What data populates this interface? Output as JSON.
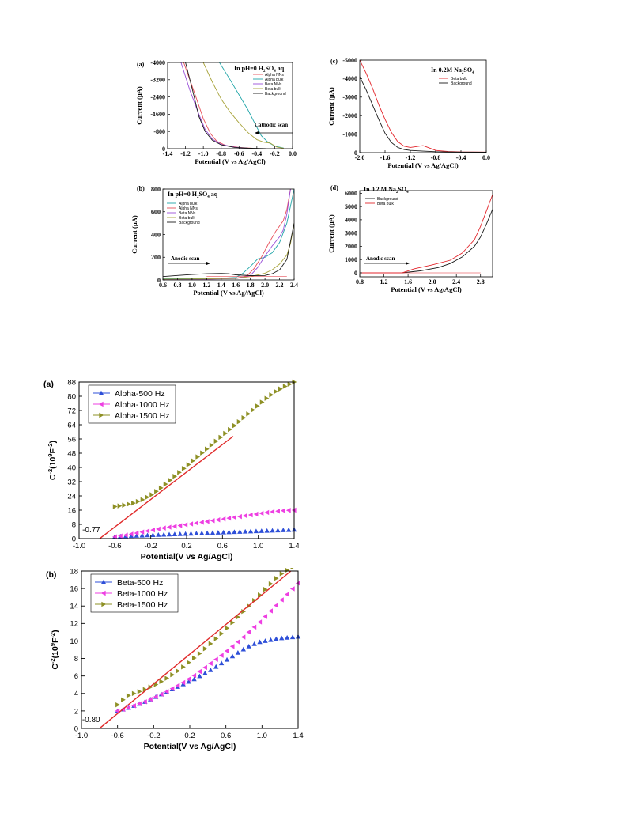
{
  "colors": {
    "alpha_nns": "#e8505a",
    "alpha_bulk": "#1fa5a8",
    "beta_nns": "#9a4fd8",
    "beta_bulk": "#a8a33a",
    "background": "#1a1a1a",
    "red": "#e3262c",
    "tri_blue": "#2e4fd8",
    "tri_magenta": "#ee3fe2",
    "tri_olive": "#8e9025",
    "fit": "#e02a2a"
  },
  "chart_data": [
    {
      "id": "a",
      "panel_label": "(a)",
      "type": "line",
      "title_main": "In pH=0 H",
      "title_sub": "2",
      "title_main2": "SO",
      "title_sub2": "4",
      "title_end": " aq",
      "xlabel": "Potential (V vs Ag/AgCl)",
      "ylabel": "Current (µA)",
      "xlim": [
        -1.4,
        0.0
      ],
      "ylim": [
        -4000,
        0
      ],
      "y_reversed": true,
      "xticks": [
        -1.4,
        -1.2,
        -1.0,
        -0.8,
        -0.6,
        -0.4,
        -0.2,
        0.0
      ],
      "xtick_labels": [
        "-1.4",
        "-1.2",
        "-1.0",
        "-0.8",
        "-0.6",
        "-0.4",
        "-0.2",
        "0.0"
      ],
      "yticks": [
        -4000,
        -3200,
        -2400,
        -1600,
        -800,
        0
      ],
      "ytick_labels": [
        "-4000",
        "-3200",
        "-2400",
        "-1600",
        "-800",
        "0"
      ],
      "annotation": "Cathodic scan",
      "legend": [
        "Alpha NNs",
        "Alpha bulk",
        "Beta NNs",
        "Beta bulk",
        "Background"
      ],
      "series": [
        {
          "name": "Alpha NNs",
          "color_key": "alpha_nns",
          "x": [
            -1.22,
            -1.1,
            -1.0,
            -0.92,
            -0.85,
            -0.75,
            -0.6,
            -0.45
          ],
          "y": [
            -4000,
            -2600,
            -1400,
            -700,
            -350,
            -150,
            -60,
            -20
          ]
        },
        {
          "name": "Alpha bulk",
          "color_key": "alpha_bulk",
          "x": [
            -0.82,
            -0.7,
            -0.6,
            -0.5,
            -0.42,
            -0.35,
            -0.28,
            -0.2,
            -0.1
          ],
          "y": [
            -4000,
            -3200,
            -2500,
            -1800,
            -1150,
            -600,
            -320,
            -120,
            -30
          ]
        },
        {
          "name": "Beta NNs",
          "color_key": "beta_nns",
          "x": [
            -1.25,
            -1.15,
            -1.05,
            -0.98,
            -0.9,
            -0.8,
            -0.65,
            -0.5
          ],
          "y": [
            -4000,
            -2700,
            -1600,
            -900,
            -450,
            -200,
            -70,
            -20
          ]
        },
        {
          "name": "Beta bulk",
          "color_key": "beta_bulk",
          "x": [
            -1.0,
            -0.9,
            -0.8,
            -0.7,
            -0.6,
            -0.5,
            -0.4,
            -0.32,
            -0.25,
            -0.18,
            -0.1
          ],
          "y": [
            -4000,
            -3100,
            -2300,
            -1700,
            -1200,
            -750,
            -420,
            -300,
            -260,
            -80,
            -20
          ]
        },
        {
          "name": "Background",
          "color_key": "background",
          "x": [
            -1.2,
            -1.12,
            -1.05,
            -0.98,
            -0.9,
            -0.8,
            -0.65,
            -0.5,
            -0.3
          ],
          "y": [
            -4000,
            -2700,
            -1500,
            -800,
            -400,
            -180,
            -60,
            -25,
            -5
          ]
        }
      ]
    },
    {
      "id": "b",
      "panel_label": "(b)",
      "type": "line",
      "title_main": "In  pH=0 H",
      "title_sub": "2",
      "title_main2": "SO",
      "title_sub2": "4",
      "title_end": " aq",
      "xlabel": "Potential (V vs Ag/AgCl)",
      "ylabel": "Current (µA)",
      "xlim": [
        0.6,
        2.4
      ],
      "ylim": [
        0,
        800
      ],
      "xticks": [
        0.6,
        0.8,
        1.0,
        1.2,
        1.4,
        1.6,
        1.8,
        2.0,
        2.2,
        2.4
      ],
      "xtick_labels": [
        "0.6",
        "0.8",
        "1.0",
        "1.2",
        "1.4",
        "1.6",
        "1.8",
        "2.0",
        "2.2",
        "2.4"
      ],
      "yticks": [
        0,
        200,
        400,
        600,
        800
      ],
      "ytick_labels": [
        "0",
        "200",
        "400",
        "600",
        "800"
      ],
      "annotation": "Anodic scan",
      "legend": [
        "Alpha bulk",
        "Alpha NNs",
        "Beta NNs",
        "Beta bulk",
        "Background"
      ],
      "series": [
        {
          "name": "Alpha bulk",
          "color_key": "alpha_bulk",
          "x": [
            0.6,
            1.0,
            1.4,
            1.6,
            1.7,
            1.8,
            1.9,
            2.0,
            2.1,
            2.2,
            2.3,
            2.35,
            2.4
          ],
          "y": [
            10,
            12,
            15,
            22,
            60,
            120,
            185,
            200,
            240,
            330,
            500,
            650,
            800
          ]
        },
        {
          "name": "Alpha NNs",
          "color_key": "alpha_nns",
          "x": [
            0.6,
            1.2,
            1.6,
            1.75,
            1.85,
            1.95,
            2.05,
            2.15,
            2.25,
            2.3,
            2.35
          ],
          "y": [
            5,
            8,
            15,
            35,
            100,
            200,
            320,
            430,
            520,
            620,
            800
          ]
        },
        {
          "name": "Beta NNs",
          "color_key": "beta_nns",
          "x": [
            0.6,
            1.2,
            1.6,
            1.8,
            1.9,
            2.0,
            2.1,
            2.2,
            2.25,
            2.3,
            2.35
          ],
          "y": [
            5,
            8,
            12,
            40,
            110,
            210,
            300,
            380,
            440,
            580,
            800
          ]
        },
        {
          "name": "Beta bulk",
          "color_key": "beta_bulk",
          "x": [
            0.6,
            1.2,
            1.6,
            1.8,
            2.0,
            2.1,
            2.2,
            2.3,
            2.35,
            2.4
          ],
          "y": [
            8,
            10,
            14,
            30,
            60,
            90,
            140,
            220,
            320,
            500
          ]
        },
        {
          "name": "Background",
          "color_key": "background",
          "x": [
            0.6,
            0.8,
            1.0,
            1.2,
            1.4,
            1.5,
            1.6,
            1.8,
            2.0,
            2.1,
            2.2,
            2.3,
            2.4
          ],
          "y": [
            30,
            40,
            48,
            55,
            58,
            55,
            45,
            38,
            40,
            55,
            90,
            180,
            500
          ]
        },
        {
          "name": "Tangent",
          "color_key": "alpha_nns",
          "x": [
            1.2,
            2.3
          ],
          "y": [
            30,
            30
          ]
        }
      ]
    },
    {
      "id": "c",
      "panel_label": "(c)",
      "type": "line",
      "title_main": "In 0.2M Na",
      "title_sub": "2",
      "title_main2": "SO",
      "title_sub2": "4",
      "title_end": "",
      "xlabel": "Potential (V vs Ag/AgCl)",
      "ylabel": "Current (µA)",
      "xlim": [
        -2.0,
        0.0
      ],
      "ylim": [
        -5000,
        0
      ],
      "y_reversed": true,
      "xticks": [
        -2.0,
        -1.6,
        -1.2,
        -0.8,
        -0.4,
        0.0
      ],
      "xtick_labels": [
        "-2.0",
        "-1.6",
        "-1.2",
        "-0.8",
        "-0.4",
        "0.0"
      ],
      "yticks": [
        -5000,
        -4000,
        -3000,
        -2000,
        -1000,
        0
      ],
      "ytick_labels": [
        "-5000",
        "-4000",
        "-3000",
        "-2000",
        "-1000",
        "0"
      ],
      "annotation": "",
      "legend": [
        "Beta bulk",
        "Background"
      ],
      "series": [
        {
          "name": "Beta bulk",
          "color_key": "red",
          "x": [
            -2.0,
            -1.9,
            -1.8,
            -1.7,
            -1.6,
            -1.5,
            -1.4,
            -1.3,
            -1.2,
            -1.1,
            -1.0,
            -0.9,
            -0.8,
            -0.6,
            -0.4,
            0.0
          ],
          "y": [
            -5000,
            -4300,
            -3500,
            -2600,
            -1800,
            -1100,
            -600,
            -350,
            -280,
            -330,
            -380,
            -250,
            -120,
            -60,
            -40,
            -30
          ]
        },
        {
          "name": "Background",
          "color_key": "background",
          "x": [
            -2.0,
            -1.9,
            -1.8,
            -1.7,
            -1.6,
            -1.5,
            -1.4,
            -1.3,
            -1.2,
            -1.0,
            -0.8,
            -0.4,
            0.0
          ],
          "y": [
            -4100,
            -3400,
            -2600,
            -1800,
            -1050,
            -550,
            -280,
            -170,
            -120,
            -80,
            -50,
            -30,
            -20
          ]
        }
      ]
    },
    {
      "id": "d",
      "panel_label": "(d)",
      "type": "line",
      "title_main": "In 0.2 M Na",
      "title_sub": "2",
      "title_main2": "SO",
      "title_sub2": "4",
      "title_end": "",
      "xlabel": "Potential (V vs Ag/AgCl)",
      "ylabel": "Current (µA)",
      "xlim": [
        0.8,
        3.0
      ],
      "ylim": [
        -300,
        6200
      ],
      "xticks": [
        0.8,
        1.2,
        1.6,
        2.0,
        2.4,
        2.8
      ],
      "xtick_labels": [
        "0.8",
        "1.2",
        "1.6",
        "2.0",
        "2.4",
        "2.8"
      ],
      "yticks": [
        0,
        1000,
        2000,
        3000,
        4000,
        5000,
        6000
      ],
      "ytick_labels": [
        "0",
        "1000",
        "2000",
        "3000",
        "4000",
        "5000",
        "6000"
      ],
      "annotation": "Anodic scan",
      "legend": [
        "Background",
        "Beta bulk"
      ],
      "series": [
        {
          "name": "Background",
          "color_key": "background",
          "x": [
            0.8,
            1.2,
            1.5,
            1.8,
            2.1,
            2.3,
            2.5,
            2.7,
            2.8,
            2.9,
            3.0
          ],
          "y": [
            0,
            0,
            0,
            150,
            400,
            700,
            1200,
            2000,
            2700,
            3700,
            4800
          ]
        },
        {
          "name": "Beta bulk",
          "color_key": "red",
          "x": [
            0.8,
            1.2,
            1.5,
            1.7,
            2.0,
            2.3,
            2.5,
            2.7,
            2.8,
            2.9,
            3.0
          ],
          "y": [
            0,
            0,
            0,
            300,
            600,
            950,
            1500,
            2500,
            3500,
            4700,
            5900
          ]
        },
        {
          "name": "Tangent",
          "color_key": "red",
          "x": [
            1.5,
            2.8
          ],
          "y": [
            0,
            0
          ]
        }
      ]
    },
    {
      "id": "alpha_mott",
      "panel_label": "(a)",
      "type": "scatter",
      "xlabel": "Potential(V vs Ag/AgCl)",
      "ylabel_main": "C",
      "ylabel_sup": "-2",
      "ylabel_mid": "(10",
      "ylabel_sup2": "9",
      "ylabel_mid2": "F",
      "ylabel_sup3": "-2",
      "ylabel_end": ")",
      "xlim": [
        -1.0,
        1.4
      ],
      "ylim": [
        0,
        88
      ],
      "xticks": [
        -1.0,
        -0.6,
        -0.2,
        0.2,
        0.6,
        1.0,
        1.4
      ],
      "xtick_labels": [
        "-1.0",
        "-0.6",
        "-0.2",
        "0.2",
        "0.6",
        "1.0",
        "1.4"
      ],
      "yticks": [
        0,
        8,
        16,
        24,
        32,
        40,
        48,
        56,
        64,
        72,
        80,
        88
      ],
      "ytick_labels": [
        "0",
        "8",
        "16",
        "24",
        "32",
        "40",
        "48",
        "56",
        "64",
        "72",
        "80",
        "88"
      ],
      "annotation": "-0.77",
      "fit_line": {
        "x": [
          -0.77,
          0.72
        ],
        "y": [
          0,
          57.5
        ]
      },
      "series": [
        {
          "name": "Alpha-500 Hz",
          "marker": "up",
          "color_key": "tri_blue",
          "x_start": -0.6,
          "x_end": 1.4,
          "n": 34,
          "y": [
            1.2,
            1.4,
            1.6,
            1.8,
            2.0,
            2.2,
            2.4,
            2.6,
            2.8,
            3.0,
            3.2,
            3.4,
            3.6,
            3.8,
            4.0,
            4.2,
            4.4,
            4.6,
            4.8,
            5.0
          ]
        },
        {
          "name": "Alpha-1000 Hz",
          "marker": "left",
          "color_key": "tri_magenta",
          "x_start": -0.6,
          "x_end": 1.4,
          "n": 34,
          "y": [
            1.0,
            1.8,
            2.8,
            3.8,
            4.8,
            5.8,
            6.6,
            7.4,
            8.2,
            9.0,
            9.8,
            10.6,
            11.4,
            12.2,
            13.0,
            13.8,
            14.6,
            15.3,
            15.8,
            16.0
          ]
        },
        {
          "name": "Alpha-1500 Hz",
          "marker": "right",
          "color_key": "tri_olive",
          "x_start": -0.6,
          "x_end": 1.4,
          "n": 40,
          "y": [
            18.0,
            18.8,
            20.0,
            22.0,
            25.0,
            29.0,
            33.5,
            38.0,
            42.5,
            47.0,
            51.5,
            56.0,
            60.5,
            65.0,
            69.5,
            74.0,
            78.5,
            82.5,
            85.5,
            88.0
          ]
        }
      ]
    },
    {
      "id": "beta_mott",
      "panel_label": "(b)",
      "type": "scatter",
      "xlabel": "Potential(V vs Ag/AgCl)",
      "ylabel_main": "C",
      "ylabel_sup": "-2",
      "ylabel_mid": "(10",
      "ylabel_sup2": "9",
      "ylabel_mid2": "F",
      "ylabel_sup3": "-2",
      "ylabel_end": ")",
      "xlim": [
        -1.0,
        1.4
      ],
      "ylim": [
        0,
        18
      ],
      "xticks": [
        -1.0,
        -0.6,
        -0.2,
        0.2,
        0.6,
        1.0,
        1.4
      ],
      "xtick_labels": [
        "-1.0",
        "-0.6",
        "-0.2",
        "0.2",
        "0.6",
        "1.0",
        "1.4"
      ],
      "yticks": [
        0,
        2,
        4,
        6,
        8,
        10,
        12,
        14,
        16,
        18
      ],
      "ytick_labels": [
        "0",
        "2",
        "4",
        "6",
        "8",
        "10",
        "12",
        "14",
        "16",
        "18"
      ],
      "annotation": "-0.80",
      "fit_line": {
        "x": [
          -0.8,
          1.32
        ],
        "y": [
          0,
          18
        ]
      },
      "series": [
        {
          "name": "Beta-500 Hz",
          "marker": "up",
          "color_key": "tri_blue",
          "x_start": -0.6,
          "x_end": 1.4,
          "n": 34,
          "y": [
            2.0,
            2.3,
            2.7,
            3.1,
            3.6,
            4.1,
            4.6,
            5.1,
            5.6,
            6.2,
            6.8,
            7.5,
            8.2,
            8.9,
            9.5,
            9.9,
            10.1,
            10.3,
            10.4,
            10.5
          ]
        },
        {
          "name": "Beta-1000 Hz",
          "marker": "left",
          "color_key": "tri_magenta",
          "x_start": -0.6,
          "x_end": 1.4,
          "n": 34,
          "y": [
            2.0,
            2.3,
            2.7,
            3.1,
            3.6,
            4.1,
            4.7,
            5.3,
            6.0,
            6.8,
            7.6,
            8.4,
            9.3,
            10.2,
            11.2,
            12.2,
            13.3,
            14.4,
            15.5,
            16.6
          ]
        },
        {
          "name": "Beta-1500 Hz",
          "marker": "right",
          "color_key": "tri_olive",
          "x_start": -0.6,
          "x_end": 1.4,
          "n": 34,
          "y": [
            2.7,
            3.7,
            4.1,
            4.5,
            5.0,
            5.6,
            6.3,
            7.1,
            8.0,
            8.9,
            9.9,
            10.9,
            12.0,
            13.1,
            14.2,
            15.3,
            16.4,
            17.5,
            18.2,
            18.8
          ]
        }
      ]
    }
  ]
}
